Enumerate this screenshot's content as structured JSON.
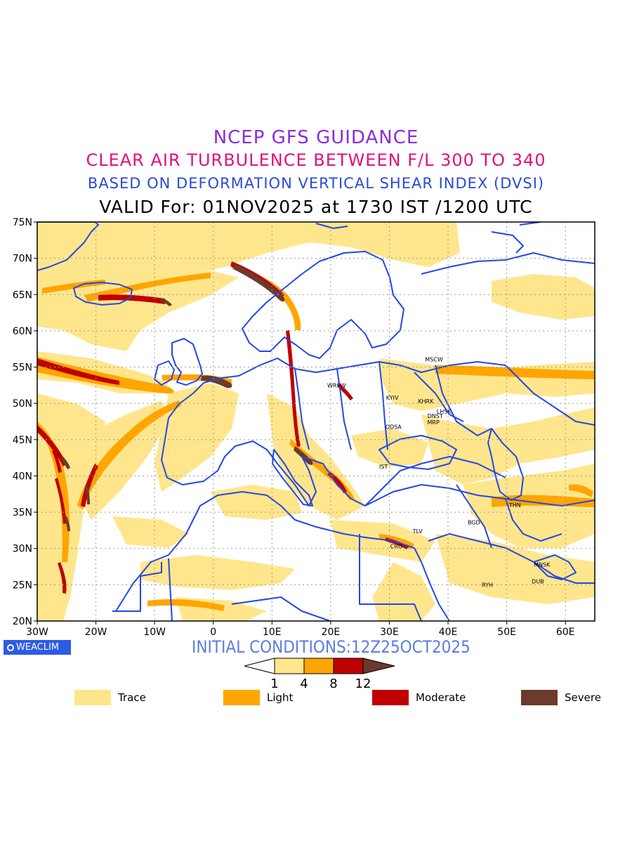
{
  "titles": {
    "line1": "NCEP GFS GUIDANCE",
    "line2": "CLEAR AIR TURBULENCE BETWEEN F/L 300 TO 340",
    "line3": "BASED ON DEFORMATION VERTICAL SHEAR INDEX (DVSI)",
    "line4": "VALID For: 01NOV2025 at 1730 IST /1200 UTC"
  },
  "map": {
    "lat_range": [
      20,
      75
    ],
    "lon_range": [
      -30,
      65
    ],
    "lat_ticks": [
      "20N",
      "25N",
      "30N",
      "35N",
      "40N",
      "45N",
      "50N",
      "55N",
      "60N",
      "65N",
      "70N",
      "75N"
    ],
    "lon_ticks": [
      "30W",
      "20W",
      "10W",
      "0",
      "10E",
      "20E",
      "30E",
      "40E",
      "50E",
      "60E"
    ],
    "cities": [
      {
        "name": "MSCW",
        "lon": 37.6,
        "lat": 55.8
      },
      {
        "name": "WRSW",
        "lon": 21.0,
        "lat": 52.2
      },
      {
        "name": "KYIV",
        "lon": 30.5,
        "lat": 50.5
      },
      {
        "name": "KHRK",
        "lon": 36.2,
        "lat": 50.0
      },
      {
        "name": "LHSK",
        "lon": 39.3,
        "lat": 48.6
      },
      {
        "name": "DNST",
        "lon": 37.8,
        "lat": 48.0
      },
      {
        "name": "MRP",
        "lon": 37.5,
        "lat": 47.1
      },
      {
        "name": "ODSA",
        "lon": 30.7,
        "lat": 46.5
      },
      {
        "name": "IST",
        "lon": 29.0,
        "lat": 41.0
      },
      {
        "name": "THN",
        "lon": 51.4,
        "lat": 35.7
      },
      {
        "name": "BGD",
        "lon": 44.4,
        "lat": 33.3
      },
      {
        "name": "TLV",
        "lon": 34.8,
        "lat": 32.1
      },
      {
        "name": "CRO",
        "lon": 31.2,
        "lat": 30.0
      },
      {
        "name": "MNSK",
        "lon": 56.0,
        "lat": 27.5
      },
      {
        "name": "DUB",
        "lon": 55.3,
        "lat": 25.2
      },
      {
        "name": "RYH",
        "lon": 46.7,
        "lat": 24.7
      }
    ]
  },
  "colors": {
    "coast": "#2347e6",
    "trace": "#ffe68c",
    "light": "#ffa500",
    "moderate": "#c00000",
    "severe": "#6b3a2a"
  },
  "badge": "WEACLIM",
  "initial_conditions": "INITIAL CONDITIONS:12Z25OCT2025",
  "colorbar": {
    "ticks": [
      "1",
      "4",
      "8",
      "12"
    ]
  },
  "legend": [
    {
      "label": "Trace",
      "color": "#ffe68c"
    },
    {
      "label": "Light",
      "color": "#ffa500"
    },
    {
      "label": "Moderate",
      "color": "#c00000"
    },
    {
      "label": "Severe",
      "color": "#6b3a2a"
    }
  ]
}
